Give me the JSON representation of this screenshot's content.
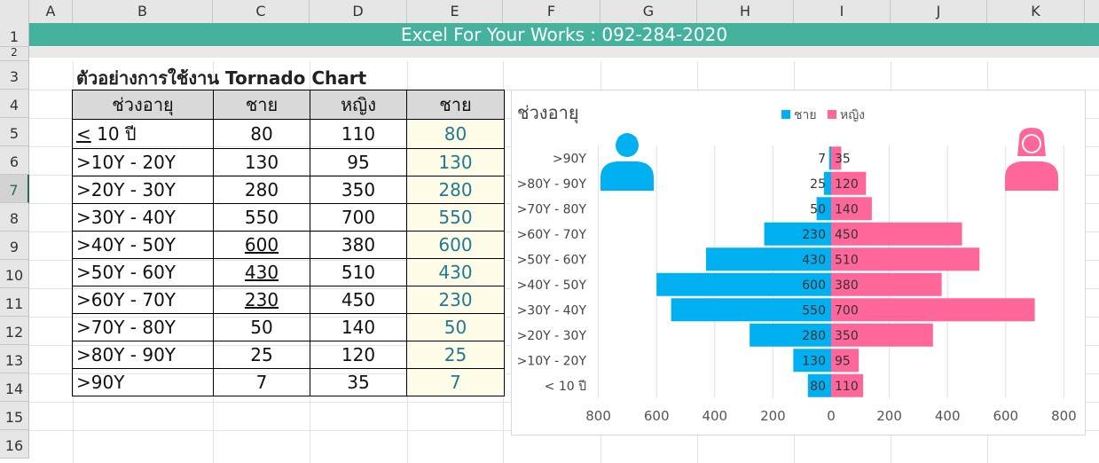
{
  "spreadsheet": {
    "columns": [
      "A",
      "B",
      "C",
      "D",
      "E",
      "F",
      "G",
      "H",
      "I",
      "J",
      "K"
    ],
    "rows": [
      "1",
      "2",
      "3",
      "4",
      "5",
      "6",
      "7",
      "8",
      "9",
      "10",
      "11",
      "12",
      "13",
      "14",
      "15",
      "16"
    ],
    "selected_row": "7"
  },
  "banner": {
    "text": "Excel For Your Works : 092-284-2020"
  },
  "title": "ตัวอย่างการใช้งาน Tornado Chart",
  "table": {
    "headers": [
      "ช่วงอายุ",
      "ชาย",
      "หญิง",
      "ชาย"
    ],
    "rows": [
      {
        "age": "10 ปี",
        "age_prefix": "<",
        "male": "80",
        "female": "110",
        "male2": "80"
      },
      {
        "age": ">10Y - 20Y",
        "male": "130",
        "female": "95",
        "male2": "130"
      },
      {
        "age": ">20Y - 30Y",
        "male": "280",
        "female": "350",
        "male2": "280"
      },
      {
        "age": ">30Y - 40Y",
        "male": "550",
        "female": "700",
        "male2": "550"
      },
      {
        "age": ">40Y - 50Y",
        "male": "600",
        "female": "380",
        "male2": "600"
      },
      {
        "age": ">50Y - 60Y",
        "male": "430",
        "female": "510",
        "male2": "430"
      },
      {
        "age": ">60Y - 70Y",
        "male": "230",
        "female": "450",
        "male2": "230"
      },
      {
        "age": ">70Y - 80Y",
        "male": "50",
        "female": "140",
        "male2": "50"
      },
      {
        "age": ">80Y - 90Y",
        "male": "25",
        "female": "120",
        "male2": "25"
      },
      {
        "age": ">90Y",
        "male": "7",
        "female": "35",
        "male2": "7"
      }
    ]
  },
  "chart_data": {
    "type": "bar",
    "orientation": "horizontal",
    "title": "ช่วงอายุ",
    "categories": [
      "< 10 ปี",
      ">10Y - 20Y",
      ">20Y - 30Y",
      ">30Y - 40Y",
      ">40Y - 50Y",
      ">50Y - 60Y",
      ">60Y - 70Y",
      ">70Y - 80Y",
      ">80Y - 90Y",
      ">90Y"
    ],
    "series": [
      {
        "name": "ชาย",
        "values": [
          80,
          130,
          280,
          550,
          600,
          430,
          230,
          50,
          25,
          7
        ],
        "color": "#00b0f0",
        "direction": "left"
      },
      {
        "name": "หญิง",
        "values": [
          110,
          95,
          350,
          700,
          380,
          510,
          450,
          140,
          120,
          35
        ],
        "color": "#ff6699",
        "direction": "right"
      }
    ],
    "xlim": [
      -800,
      800
    ],
    "xticks": [
      "800",
      "600",
      "400",
      "200",
      "0",
      "200",
      "400",
      "600",
      "800"
    ],
    "legend": "top",
    "grid": true,
    "icons": [
      "male-person-icon",
      "female-person-icon"
    ]
  }
}
